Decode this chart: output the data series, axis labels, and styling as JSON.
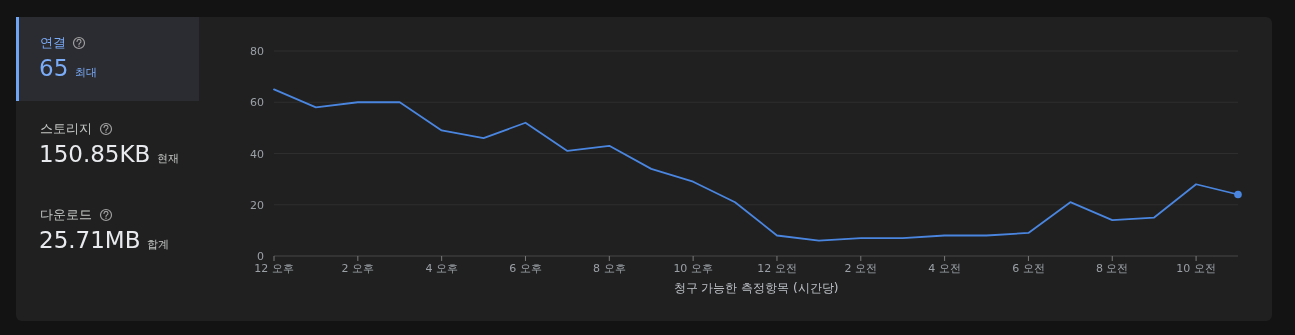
{
  "chart_data": [
    {
      "type": "other",
      "annotations": [
        "연결",
        "65",
        "최대",
        "스토리지",
        "150.85KB",
        "현재",
        "다운로드",
        "25.71MB",
        "합계"
      ]
    },
    {
      "type": "line",
      "xlabel": "청구 가능한 측정항목 (시간당)",
      "categories": [
        "12 오후",
        null,
        "2 오후",
        null,
        "4 오후",
        null,
        "6 오후",
        null,
        "8 오후",
        null,
        "10 오후",
        null,
        "12 오전",
        null,
        "2 오전",
        null,
        "4 오전",
        null,
        "6 오전",
        null,
        "8 오전",
        null,
        "10 오전",
        null
      ],
      "series": [
        {
          "color": "#4a86e0",
          "values": [
            65,
            58,
            60,
            60,
            49,
            46,
            52,
            41,
            43,
            34,
            29,
            21,
            8,
            6,
            7,
            7,
            8,
            8,
            9,
            21,
            14,
            15,
            28,
            24
          ]
        }
      ],
      "ylim": [
        0,
        80
      ],
      "yticks": [
        0,
        20,
        40,
        60,
        80
      ],
      "grid": "y",
      "marker": "none",
      "line_style": "solid"
    }
  ]
}
